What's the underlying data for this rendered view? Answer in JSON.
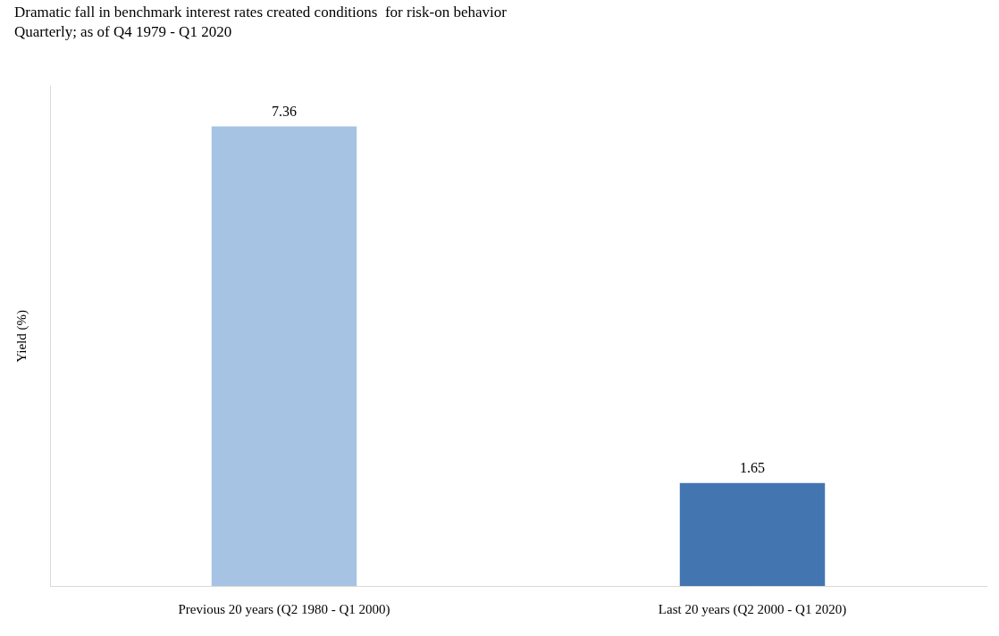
{
  "chart_data": {
    "type": "bar",
    "title": "Dramatic fall in benchmark interest rates created conditions  for risk-on behavior",
    "subtitle": "Quarterly; as of Q4 1979 - Q1 2020",
    "y_label": "Yield (%)",
    "categories": [
      "Previous 20 years (Q2 1980 - Q1 2000)",
      "Last 20 years (Q2 2000 - Q1 2020)"
    ],
    "values": [
      7.36,
      1.65
    ],
    "colors": [
      "#a6c3e3",
      "#4375b1"
    ],
    "ylim": [
      0,
      8
    ],
    "grid": false,
    "data_labels": true,
    "tick_labels": "x"
  }
}
